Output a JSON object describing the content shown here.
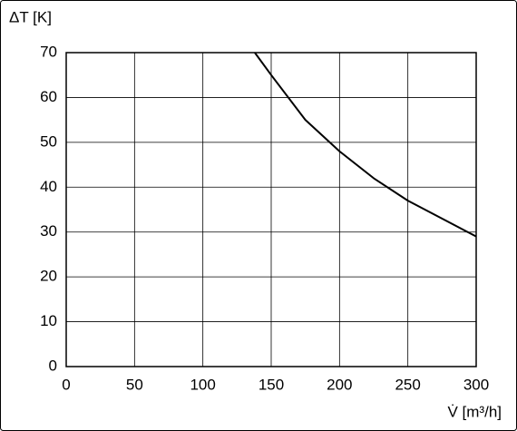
{
  "chart_data": {
    "type": "line",
    "y_label": "ΔT [K]",
    "x_label": "V̇ [m³/h]",
    "x": [
      138,
      150,
      175,
      200,
      225,
      250,
      275,
      300
    ],
    "series": [
      {
        "color": "#000000",
        "values": [
          70,
          65,
          55,
          48,
          42,
          37,
          33,
          29
        ]
      }
    ],
    "xlim": [
      0,
      300
    ],
    "xticks": [
      0,
      50,
      100,
      150,
      200,
      250,
      300
    ],
    "ylim": [
      0,
      70
    ],
    "yticks": [
      0,
      10,
      20,
      30,
      40,
      50,
      60,
      70
    ],
    "grid": true
  }
}
